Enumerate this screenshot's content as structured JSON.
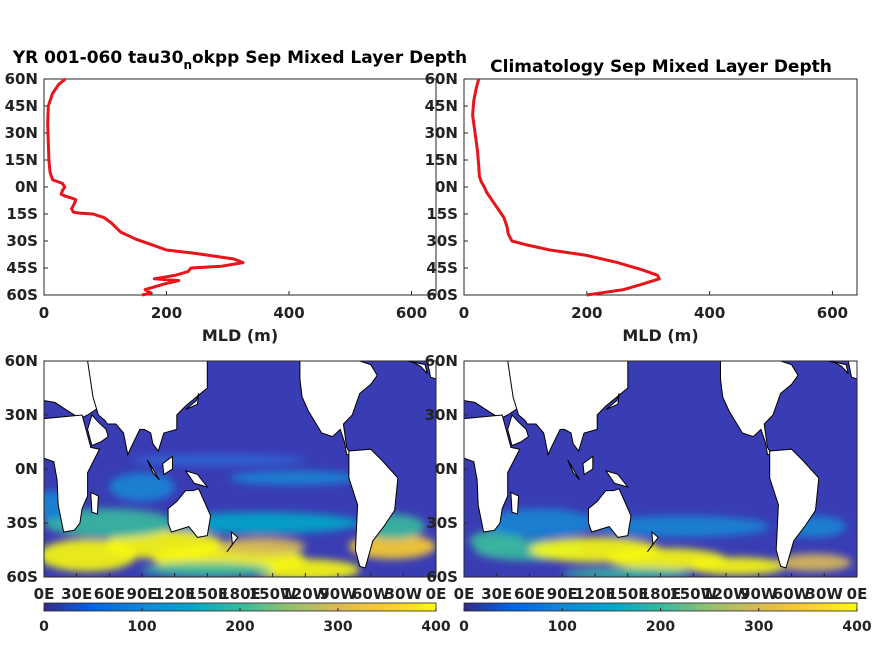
{
  "colors": {
    "profile": "#e8141a",
    "land": "#ffffff",
    "coast": "#000000",
    "axis": "#262626"
  },
  "chart_data": [
    {
      "type": "line",
      "title": "YR 001-060 tau30_nokpp Sep Mixed Layer Depth",
      "title_parts": [
        "YR 001-060 tau30",
        "n",
        "okpp Sep Mixed Layer Depth"
      ],
      "xlabel": "MLD (m)",
      "xlim": [
        0,
        640
      ],
      "ylim": [
        -60,
        60
      ],
      "xticks": [
        "0",
        "200",
        "400",
        "600"
      ],
      "yticks": [
        "60N",
        "45N",
        "30N",
        "15N",
        "0N",
        "15S",
        "30S",
        "45S",
        "60S"
      ],
      "series": [
        {
          "points": [
            [
              35,
              60
            ],
            [
              24,
              57
            ],
            [
              14,
              52
            ],
            [
              7,
              45
            ],
            [
              6,
              35
            ],
            [
              7,
              25
            ],
            [
              8,
              15
            ],
            [
              10,
              8
            ],
            [
              14,
              4
            ],
            [
              22,
              3
            ],
            [
              30,
              2
            ],
            [
              34,
              0
            ],
            [
              30,
              -2
            ],
            [
              28,
              -4
            ],
            [
              34,
              -5
            ],
            [
              44,
              -6
            ],
            [
              52,
              -7
            ],
            [
              50,
              -9
            ],
            [
              45,
              -12
            ],
            [
              48,
              -14
            ],
            [
              58,
              -14.5
            ],
            [
              80,
              -15
            ],
            [
              98,
              -17
            ],
            [
              110,
              -20
            ],
            [
              125,
              -25
            ],
            [
              150,
              -29
            ],
            [
              175,
              -32
            ],
            [
              200,
              -35
            ],
            [
              250,
              -37
            ],
            [
              310,
              -40
            ],
            [
              325,
              -42
            ],
            [
              290,
              -44
            ],
            [
              240,
              -45
            ],
            [
              235,
              -47
            ],
            [
              215,
              -49
            ],
            [
              180,
              -51
            ],
            [
              220,
              -52
            ],
            [
              195,
              -54
            ],
            [
              175,
              -56
            ],
            [
              165,
              -57
            ],
            [
              175,
              -59
            ],
            [
              160,
              -60
            ]
          ]
        }
      ]
    },
    {
      "type": "line",
      "title": "Climatology Sep Mixed Layer Depth",
      "xlabel": "MLD (m)",
      "xlim": [
        0,
        640
      ],
      "ylim": [
        -60,
        60
      ],
      "xticks": [
        "0",
        "200",
        "400",
        "600"
      ],
      "yticks": [
        "60N",
        "45N",
        "30N",
        "15N",
        "0N",
        "15S",
        "30S",
        "45S",
        "60S"
      ],
      "series": [
        {
          "points": [
            [
              24,
              60
            ],
            [
              20,
              55
            ],
            [
              16,
              48
            ],
            [
              14,
              40
            ],
            [
              18,
              30
            ],
            [
              22,
              20
            ],
            [
              24,
              12
            ],
            [
              25,
              6
            ],
            [
              28,
              3
            ],
            [
              33,
              0
            ],
            [
              37,
              -3
            ],
            [
              45,
              -7
            ],
            [
              55,
              -12
            ],
            [
              65,
              -17
            ],
            [
              70,
              -22
            ],
            [
              72,
              -26
            ],
            [
              78,
              -30
            ],
            [
              100,
              -32
            ],
            [
              140,
              -35
            ],
            [
              200,
              -38
            ],
            [
              250,
              -42
            ],
            [
              290,
              -46
            ],
            [
              315,
              -49
            ],
            [
              318,
              -51
            ],
            [
              290,
              -54
            ],
            [
              260,
              -57
            ],
            [
              220,
              -59
            ],
            [
              200,
              -60
            ]
          ]
        }
      ]
    },
    {
      "type": "heatmap",
      "title": "",
      "ylim": [
        -60,
        60
      ],
      "xticks": [
        "0E",
        "30E",
        "60E",
        "90E",
        "120E",
        "150E",
        "180E",
        "150W",
        "120W",
        "90W",
        "60W",
        "30W",
        "0E"
      ],
      "yticks": [
        "60N",
        "30N",
        "0N",
        "30S",
        "60S"
      ],
      "colorbar": {
        "range": [
          0,
          400
        ],
        "ticks": [
          "0",
          "100",
          "200",
          "300",
          "400"
        ]
      }
    },
    {
      "type": "heatmap",
      "title": "",
      "ylim": [
        -60,
        60
      ],
      "xticks": [
        "0E",
        "30E",
        "60E",
        "90E",
        "120E",
        "150E",
        "180E",
        "150W",
        "120W",
        "90W",
        "60W",
        "30W",
        "0E"
      ],
      "yticks": [
        "60N",
        "30N",
        "0N",
        "30S",
        "60S"
      ],
      "colorbar": {
        "range": [
          0,
          400
        ],
        "ticks": [
          "0",
          "100",
          "200",
          "300",
          "400"
        ]
      }
    }
  ]
}
